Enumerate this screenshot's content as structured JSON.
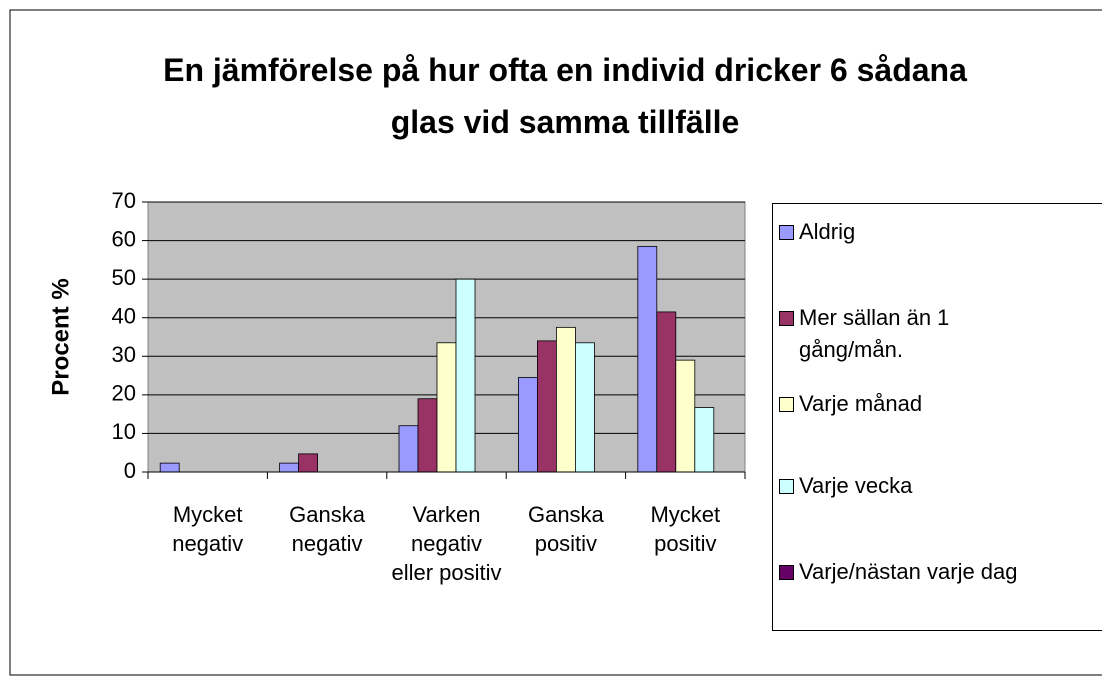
{
  "chart_data": {
    "type": "bar",
    "title": "En jämförelse på hur ofta en individ dricker 6 sådana glas vid samma tillfälle",
    "y_label": "Procent %",
    "categories": [
      "Mycket negativ",
      "Ganska negativ",
      "Varken negativ eller positiv",
      "Ganska positiv",
      "Mycket positiv"
    ],
    "series": [
      {
        "name": "Aldrig",
        "color": "#9999ff",
        "values": [
          2.3,
          2.3,
          12,
          24.5,
          58.5
        ]
      },
      {
        "name": "Mer sällan än 1 gång/mån.",
        "color": "#993366",
        "values": [
          0,
          4.7,
          19,
          34,
          41.5
        ]
      },
      {
        "name": "Varje månad",
        "color": "#ffffcc",
        "values": [
          0,
          0,
          33.5,
          37.5,
          29
        ]
      },
      {
        "name": "Varje vecka",
        "color": "#ccffff",
        "values": [
          0,
          0,
          50,
          33.5,
          16.7
        ]
      },
      {
        "name": "Varje/nästan varje dag",
        "color": "#660066",
        "values": [
          0,
          0,
          0,
          0,
          0
        ]
      }
    ],
    "ylim": [
      0,
      70
    ],
    "yticks": [
      0,
      10,
      20,
      30,
      40,
      50,
      60,
      70
    ],
    "grid": true,
    "legend": "right"
  }
}
